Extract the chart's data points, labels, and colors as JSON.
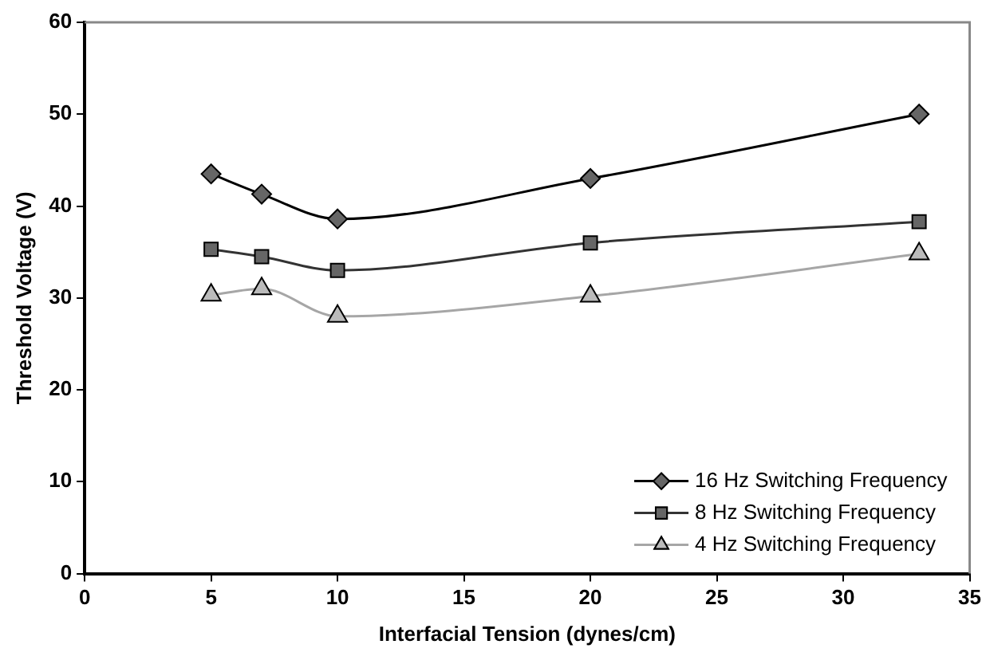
{
  "chart_data": {
    "type": "line",
    "xlabel": "Interfacial Tension (dynes/cm)",
    "ylabel": "Threshold Voltage (V)",
    "x": [
      5,
      7,
      10,
      20,
      33
    ],
    "series": [
      {
        "name": "16 Hz Switching Frequency",
        "color": "#000000",
        "marker": "diamond",
        "values": [
          43.5,
          41.3,
          38.6,
          43,
          50
        ]
      },
      {
        "name": "8 Hz Switching Frequency",
        "color": "#333333",
        "marker": "square",
        "values": [
          35.3,
          34.5,
          33,
          36,
          38.3
        ]
      },
      {
        "name": "4 Hz Switching Frequency",
        "color": "#a6a6a6",
        "marker": "triangle",
        "values": [
          30.3,
          31,
          28,
          30.2,
          34.8
        ]
      }
    ],
    "xlim": [
      0,
      35
    ],
    "xticks": [
      0,
      5,
      10,
      15,
      20,
      25,
      30,
      35
    ],
    "ylim": [
      0,
      60
    ],
    "yticks": [
      0,
      10,
      20,
      30,
      40,
      50,
      60
    ],
    "grid": false,
    "legend": "bottom right",
    "line_style": "solid"
  }
}
